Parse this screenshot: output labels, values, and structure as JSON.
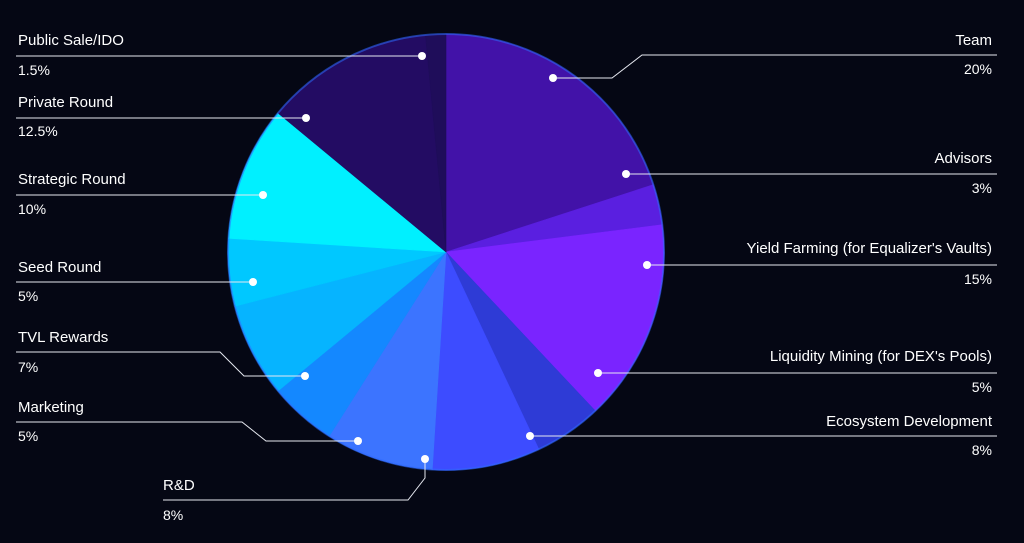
{
  "chart_data": {
    "type": "pie",
    "start_angle_deg": 0,
    "direction": "clockwise",
    "colors": {
      "background": "#050714",
      "rim": "#2f6bff"
    },
    "slices": [
      {
        "label": "Team",
        "value_label": "20%",
        "value": 20,
        "color": "#4212a8",
        "side": "right"
      },
      {
        "label": "Advisors",
        "value_label": "3%",
        "value": 3,
        "color": "#5a1fe0",
        "side": "right"
      },
      {
        "label": "Yield Farming (for Equalizer's Vaults)",
        "value_label": "15%",
        "value": 15,
        "color": "#7a24ff",
        "side": "right"
      },
      {
        "label": "Liquidity Mining (for DEX's Pools)",
        "value_label": "5%",
        "value": 5,
        "color": "#2e3bd6",
        "side": "right"
      },
      {
        "label": "Ecosystem Development",
        "value_label": "8%",
        "value": 8,
        "color": "#3d4cff",
        "side": "right"
      },
      {
        "label": "R&D",
        "value_label": "8%",
        "value": 8,
        "color": "#3c74ff",
        "side": "bottom"
      },
      {
        "label": "Marketing",
        "value_label": "5%",
        "value": 5,
        "color": "#1488ff",
        "side": "left"
      },
      {
        "label": "TVL Rewards",
        "value_label": "7%",
        "value": 7,
        "color": "#06b4ff",
        "side": "left"
      },
      {
        "label": "Seed Round",
        "value_label": "5%",
        "value": 5,
        "color": "#00c8ff",
        "side": "left"
      },
      {
        "label": "Strategic Round",
        "value_label": "10%",
        "value": 10,
        "color": "#00f0ff",
        "side": "left"
      },
      {
        "label": "Private Round",
        "value_label": "12.5%",
        "value": 12.5,
        "color": "#230c63",
        "side": "left"
      },
      {
        "label": "Public Sale/IDO",
        "value_label": "1.5%",
        "value": 1.5,
        "color": "#1f0d5a",
        "side": "left"
      }
    ]
  }
}
